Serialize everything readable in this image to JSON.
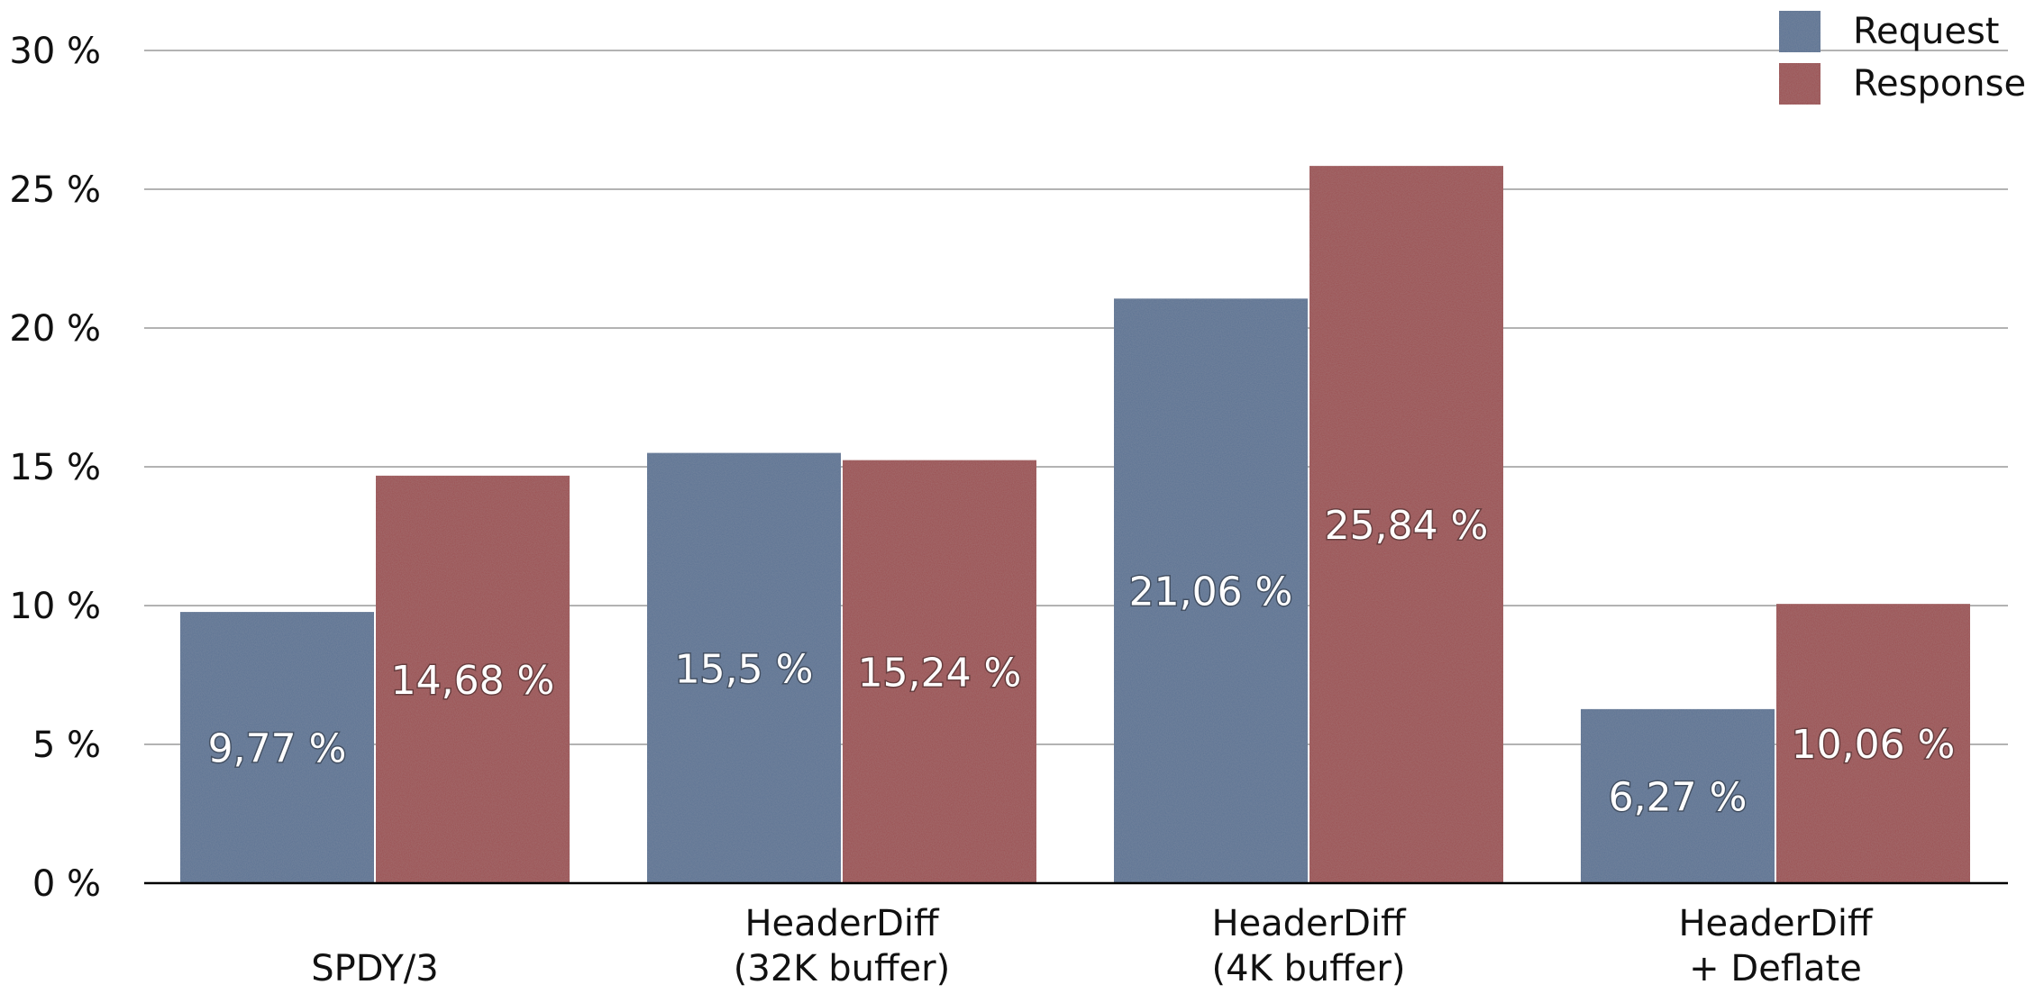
{
  "chart_data": {
    "type": "bar",
    "categories": [
      [
        "SPDY/3"
      ],
      [
        "HeaderDiff",
        "(32K buffer)"
      ],
      [
        "HeaderDiff",
        "(4K buffer)"
      ],
      [
        "HeaderDiff",
        "+ Deflate"
      ]
    ],
    "series": [
      {
        "name": "Request",
        "color": "#5b7394",
        "values": [
          9.77,
          15.5,
          21.06,
          6.27
        ],
        "labels": [
          "9,77 %",
          "15,5 %",
          "21,06 %",
          "6,27 %"
        ]
      },
      {
        "name": "Response",
        "color": "#9c4f51",
        "values": [
          14.68,
          15.24,
          25.84,
          10.06
        ],
        "labels": [
          "14,68 %",
          "15,24 %",
          "25,84 %",
          "10,06 %"
        ]
      }
    ],
    "y_ticks": [
      0,
      5,
      10,
      15,
      20,
      25,
      30
    ],
    "y_tick_labels": [
      "0 %",
      "5 %",
      "10 %",
      "15 %",
      "20 %",
      "25 %",
      "30 %"
    ],
    "ylim": [
      0,
      30
    ],
    "grid": true,
    "legend_position": "top-right",
    "title": "",
    "xlabel": "",
    "ylabel": ""
  }
}
